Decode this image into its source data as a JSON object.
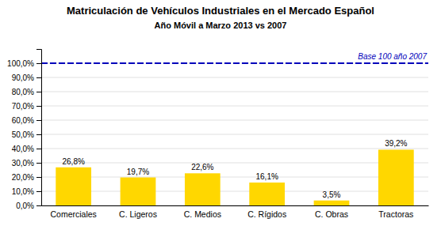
{
  "chart_data": {
    "type": "bar",
    "title": "Matriculación de Vehículos Industriales en el Mercado Español",
    "subtitle": "Año Móvil a Marzo 2013 vs 2007",
    "categories": [
      "Comerciales",
      "C. Ligeros",
      "C. Medios",
      "C. Rígidos",
      "C. Obras",
      "Tractoras"
    ],
    "values": [
      26.8,
      19.7,
      22.6,
      16.1,
      3.5,
      39.2
    ],
    "value_labels": [
      "26,8%",
      "19,7%",
      "22,6%",
      "16,1%",
      "3,5%",
      "39,2%"
    ],
    "data_labels": true,
    "color": "#FFD700",
    "ylim": [
      0,
      110
    ],
    "yticks": [
      {
        "value": 0,
        "label": "0,0%"
      },
      {
        "value": 10,
        "label": "10,0%"
      },
      {
        "value": 20,
        "label": "20,0%"
      },
      {
        "value": 30,
        "label": "30,0%"
      },
      {
        "value": 40,
        "label": "40,0%"
      },
      {
        "value": 50,
        "label": "50,0%"
      },
      {
        "value": 60,
        "label": "60,0%"
      },
      {
        "value": 70,
        "label": "70,0%"
      },
      {
        "value": 80,
        "label": "80,0%"
      },
      {
        "value": 90,
        "label": "90,0%"
      },
      {
        "value": 100,
        "label": "100,0%"
      }
    ],
    "grid": true,
    "annotations": [
      {
        "text": "Base 100 año 2007",
        "y": 100,
        "color": "#0000BB"
      }
    ]
  }
}
